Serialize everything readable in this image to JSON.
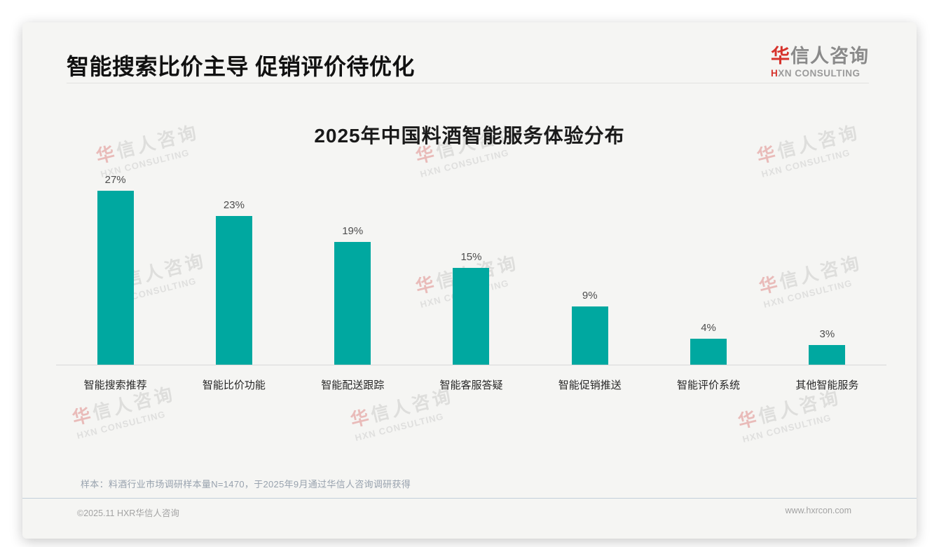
{
  "header": {
    "title": "智能搜索比价主导 促销评价待优化",
    "logo": {
      "cn_first": "华",
      "cn_rest": "信人咨询",
      "en_first": "H",
      "en_rest": "XN CONSULTING"
    }
  },
  "chart_data": {
    "type": "bar",
    "title": "2025年中国料酒智能服务体验分布",
    "categories": [
      "智能搜索推荐",
      "智能比价功能",
      "智能配送跟踪",
      "智能客服答疑",
      "智能促销推送",
      "智能评价系统",
      "其他智能服务"
    ],
    "values": [
      27,
      23,
      19,
      15,
      9,
      4,
      3
    ],
    "unit": "%",
    "ylim": [
      0,
      30
    ],
    "grid": false,
    "data_labels": true,
    "legend": false
  },
  "colors": {
    "bar": "#00a8a0",
    "accent_red": "#d6332c"
  },
  "watermark": {
    "cn_first": "华",
    "cn_rest": "信人咨询",
    "en": "HXN CONSULTING"
  },
  "note": "样本：料酒行业市场调研样本量N=1470，于2025年9月通过华信人咨询调研获得",
  "footer": {
    "copyright": "©2025.11 HXR华信人咨询",
    "website": "www.hxrcon.com"
  }
}
